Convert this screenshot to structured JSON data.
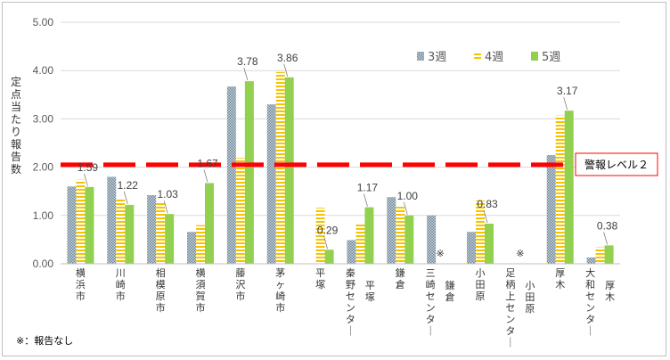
{
  "chart_data": {
    "type": "bar",
    "ylabel": "定点当たり報告数",
    "ylim": [
      0,
      5
    ],
    "yticks": [
      "0.00",
      "1.00",
      "2.00",
      "3.00",
      "4.00",
      "5.00"
    ],
    "grid": true,
    "legend_position": "top-right",
    "categories": [
      "横浜市",
      "川崎市",
      "相模原市",
      "横須賀市",
      "藤沢市",
      "茅ヶ崎市",
      "平塚",
      "秦野センター|平塚",
      "鎌倉",
      "三崎センター|鎌倉",
      "小田原",
      "足柄上センター|小田原",
      "厚木",
      "大和センター|厚木"
    ],
    "series": [
      {
        "name": "3週",
        "color": "#8fa6b5",
        "pattern": "dots",
        "values": [
          1.6,
          1.8,
          1.42,
          0.66,
          3.67,
          3.3,
          null,
          0.49,
          1.38,
          1.0,
          0.66,
          null,
          2.25,
          0.13
        ]
      },
      {
        "name": "4週",
        "color": "#f5c400",
        "pattern": "stripes",
        "values": [
          1.74,
          1.36,
          1.27,
          0.8,
          2.19,
          3.97,
          1.16,
          0.84,
          1.18,
          null,
          1.31,
          null,
          3.07,
          0.34
        ]
      },
      {
        "name": "5週",
        "color": "#92d050",
        "pattern": "solid",
        "values": [
          1.59,
          1.22,
          1.03,
          1.67,
          3.78,
          3.86,
          0.29,
          1.17,
          1.0,
          null,
          0.83,
          null,
          3.17,
          0.38
        ]
      }
    ],
    "data_labels": [
      "1.59",
      "1.22",
      "1.03",
      "1.67",
      "3.78",
      "3.86",
      "0.29",
      "1.17",
      "1.00",
      "",
      "0.83",
      "",
      "3.17",
      "0.38"
    ],
    "no_report_marks": [
      {
        "category_index": 9,
        "text": "※"
      },
      {
        "category_index": 11,
        "text": "※"
      }
    ],
    "threshold": {
      "value": 2.05,
      "color": "#ff0000",
      "label": "警報レベル２"
    },
    "footnote": "※：報告なし"
  }
}
